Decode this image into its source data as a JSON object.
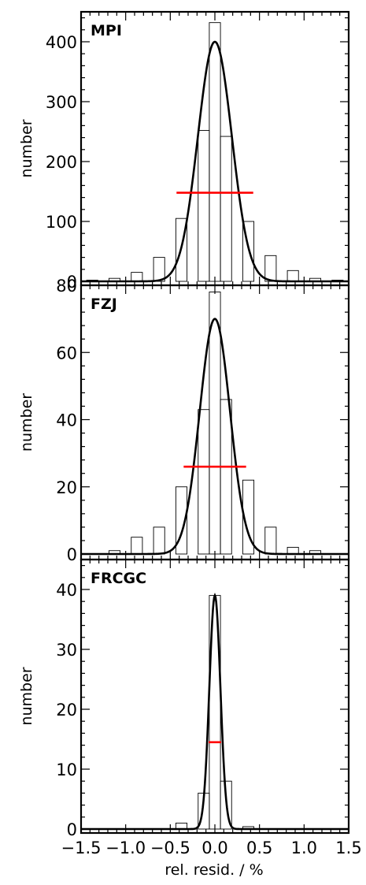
{
  "chart_data": [
    {
      "type": "bar",
      "panel_label": "MPI",
      "ylabel": "number",
      "xlabel": "",
      "xlim": [
        -1.5,
        1.5
      ],
      "ylim": [
        0,
        450
      ],
      "yticks": [
        0,
        100,
        200,
        300,
        400
      ],
      "bin_width": 0.125,
      "bins": [
        {
          "x": -1.375,
          "value": 2
        },
        {
          "x": -1.125,
          "value": 5
        },
        {
          "x": -0.875,
          "value": 15
        },
        {
          "x": -0.625,
          "value": 40
        },
        {
          "x": -0.375,
          "value": 105
        },
        {
          "x": -0.125,
          "value": 252
        },
        {
          "x": 0.0,
          "value": 432
        },
        {
          "x": 0.125,
          "value": 242
        },
        {
          "x": 0.375,
          "value": 100
        },
        {
          "x": 0.625,
          "value": 43
        },
        {
          "x": 0.875,
          "value": 18
        },
        {
          "x": 1.125,
          "value": 5
        },
        {
          "x": 1.375,
          "value": 2
        }
      ],
      "fit": {
        "amplitude": 400,
        "mean": 0.0,
        "sigma": 0.19
      },
      "hline": {
        "y": 148,
        "x0": -0.43,
        "x1": 0.43,
        "color": "#ff0000"
      }
    },
    {
      "type": "bar",
      "panel_label": "FZJ",
      "ylabel": "number",
      "xlabel": "",
      "xlim": [
        -1.5,
        1.5
      ],
      "ylim": [
        0,
        80
      ],
      "yticks": [
        0,
        20,
        40,
        60,
        80
      ],
      "bin_width": 0.125,
      "bins": [
        {
          "x": -1.125,
          "value": 1
        },
        {
          "x": -0.875,
          "value": 5
        },
        {
          "x": -0.625,
          "value": 8
        },
        {
          "x": -0.375,
          "value": 20
        },
        {
          "x": -0.125,
          "value": 43
        },
        {
          "x": 0.0,
          "value": 78
        },
        {
          "x": 0.125,
          "value": 46
        },
        {
          "x": 0.375,
          "value": 22
        },
        {
          "x": 0.625,
          "value": 8
        },
        {
          "x": 0.875,
          "value": 2
        },
        {
          "x": 1.125,
          "value": 1
        }
      ],
      "fit": {
        "amplitude": 70,
        "mean": 0.0,
        "sigma": 0.17
      },
      "hline": {
        "y": 26,
        "x0": -0.35,
        "x1": 0.35,
        "color": "#ff0000"
      }
    },
    {
      "type": "bar",
      "panel_label": "FRCGC",
      "ylabel": "number",
      "xlabel": "rel. resid. / %",
      "xlim": [
        -1.5,
        1.5
      ],
      "ylim": [
        0,
        45
      ],
      "yticks": [
        0,
        10,
        20,
        30,
        40
      ],
      "xticks": [
        "−1.5",
        "−1.0",
        "−0.5",
        "0.0",
        "0.5",
        "1.0",
        "1.5"
      ],
      "bin_width": 0.125,
      "bins": [
        {
          "x": -0.375,
          "value": 1
        },
        {
          "x": -0.125,
          "value": 6
        },
        {
          "x": 0.0,
          "value": 39
        },
        {
          "x": 0.125,
          "value": 8
        },
        {
          "x": 0.375,
          "value": 0.4
        }
      ],
      "fit": {
        "amplitude": 39,
        "mean": 0.0,
        "sigma": 0.062
      },
      "hline": {
        "y": 14.5,
        "x0": -0.07,
        "x1": 0.07,
        "color": "#ff0000"
      }
    }
  ]
}
